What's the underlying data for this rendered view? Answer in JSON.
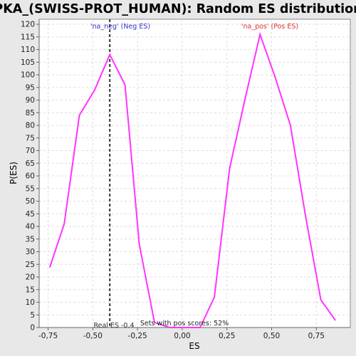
{
  "chart_data": {
    "type": "line",
    "title": "PKA_(SWISS-PROT_HUMAN): Random ES distribution",
    "xlabel": "ES",
    "ylabel": "P(ES)",
    "xlim": [
      -0.8,
      0.94
    ],
    "ylim": [
      0,
      122
    ],
    "grid": true,
    "x_ticks": [
      -0.75,
      -0.5,
      -0.25,
      0.0,
      0.25,
      0.5,
      0.75
    ],
    "x_tick_labels": [
      "-0,75",
      "-0,50",
      "-0,25",
      "0,00",
      "0,25",
      "0,50",
      "0,75"
    ],
    "y_ticks": [
      0,
      5,
      10,
      15,
      20,
      25,
      30,
      35,
      40,
      45,
      50,
      55,
      60,
      65,
      70,
      75,
      80,
      85,
      90,
      95,
      100,
      105,
      110,
      115,
      120
    ],
    "series": [
      {
        "color": "#ff33ff",
        "x": [
          -0.74,
          -0.66,
          -0.575,
          -0.49,
          -0.405,
          -0.32,
          -0.24,
          -0.155,
          -0.07,
          0.015,
          0.1,
          0.18,
          0.265,
          0.35,
          0.435,
          0.52,
          0.605,
          0.69,
          0.775,
          0.855
        ],
        "y": [
          24,
          41,
          84,
          94,
          108,
          96,
          33,
          2,
          0,
          0,
          0,
          12,
          63,
          90,
          116,
          99,
          80,
          44,
          11,
          3
        ]
      }
    ],
    "markers": [
      {
        "x": -0.405,
        "label": "Real ES -0.4",
        "style": "dashed",
        "color": "#333333"
      }
    ],
    "annotations": [
      {
        "text": "'na_neg' (Neg ES)",
        "color": "#3333cc"
      },
      {
        "text": "'na_pos' (Pos ES)",
        "color": "#dd3333"
      },
      {
        "text": "Sets with pos scores: 52%",
        "color": "#222222"
      }
    ]
  }
}
